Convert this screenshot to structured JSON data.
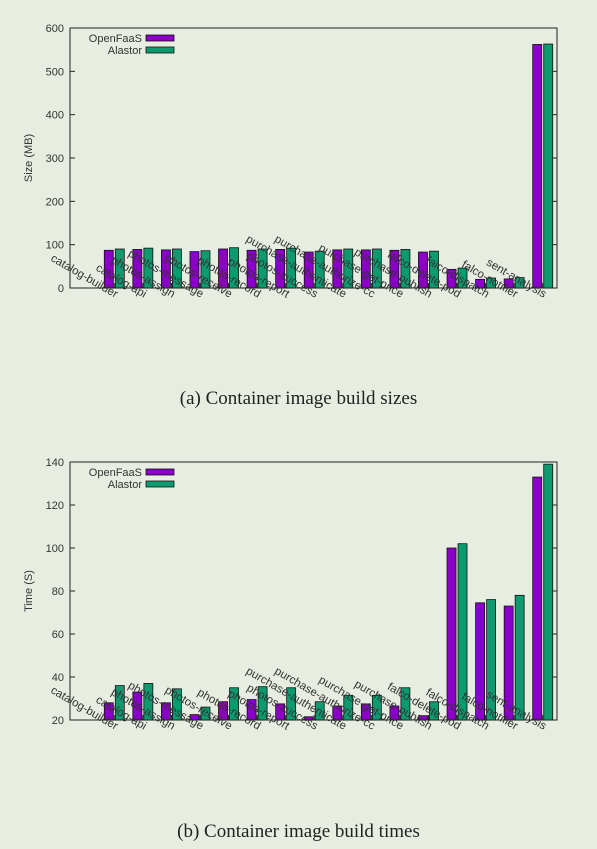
{
  "colors": {
    "openfaas": "#8b00c8",
    "alastor": "#0d9a6e"
  },
  "chart_data": [
    {
      "type": "bar",
      "title": "",
      "ylabel": "Size (MB)",
      "xlabel": "",
      "ylim": [
        0,
        600
      ],
      "yticks": [
        0,
        100,
        200,
        300,
        400,
        500,
        600
      ],
      "legend": "top-left",
      "categories": [
        "catalog-builder",
        "catalog-api",
        "photos-assign",
        "photos-message",
        "photos-receive",
        "photos-record",
        "photos-report",
        "photos-success",
        "purchase-authenticate",
        "purchase-authorize-cc",
        "purchase-get-price",
        "purchase-publish",
        "falco-delete-pod",
        "falco-dispatch",
        "falco-notifier",
        "sent-analysis"
      ],
      "series": [
        {
          "name": "OpenFaaS",
          "values": [
            87,
            89,
            88,
            84,
            90,
            87,
            89,
            83,
            88,
            88,
            87,
            83,
            43,
            20,
            21,
            562
          ]
        },
        {
          "name": "Alastor",
          "values": [
            90,
            92,
            90,
            86,
            93,
            90,
            92,
            85,
            90,
            90,
            89,
            85,
            46,
            23,
            24,
            563
          ]
        }
      ],
      "caption": "(a) Container image build sizes"
    },
    {
      "type": "bar",
      "title": "",
      "ylabel": "Time (S)",
      "xlabel": "",
      "ylim": [
        20,
        140
      ],
      "yticks": [
        20,
        40,
        60,
        80,
        100,
        120,
        140
      ],
      "legend": "top-left",
      "categories": [
        "catalog-builder",
        "catalog-api",
        "photos-assign",
        "photos-message",
        "photos-receive",
        "photos-record",
        "photos-report",
        "photos-success",
        "purchase-authenticate",
        "purchase-authorize-cc",
        "purchase-get-price",
        "purchase-publish",
        "falco-delete-pod",
        "falco-dispatch",
        "falco-notifier",
        "sent-analysis"
      ],
      "series": [
        {
          "name": "OpenFaaS",
          "values": [
            28,
            33,
            28,
            22.5,
            28.5,
            29.5,
            27.5,
            21.5,
            26.5,
            27.5,
            26.5,
            22,
            100,
            74.5,
            73,
            133
          ]
        },
        {
          "name": "Alastor",
          "values": [
            36,
            37,
            34.5,
            26,
            35,
            35.5,
            35,
            28.5,
            31.5,
            31.5,
            35,
            28.5,
            102,
            76,
            78,
            139
          ]
        }
      ],
      "caption": "(b) Container image build times"
    }
  ]
}
